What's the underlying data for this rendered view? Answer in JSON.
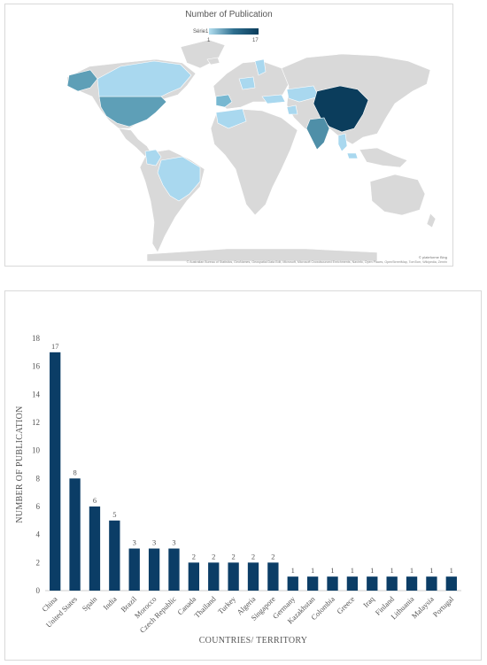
{
  "map": {
    "title": "Number of Publication",
    "legend_series": "Série1",
    "legend_min": "1",
    "legend_max": "17",
    "bing_label": "© plateforme Bing",
    "attribution": "© Australian Bureau of Statistics, GeoNames, Geospatial Data Edit, Microsoft, Microsoft Crowdsourced Enrichments, Navinfo, Open Places, OpenStreetMap, TomTom, Wikipedia, Zenrin",
    "colors": {
      "land": "#d9d9d9",
      "low": "#a9d8ef",
      "mid": "#5e9fb7",
      "high": "#0b3d5c",
      "ocean": "#ffffff"
    }
  },
  "chart_data": {
    "type": "bar",
    "title": "",
    "xlabel": "COUNTRIES/ TERRITORY",
    "ylabel": "NUMBER OF PUBLICATION",
    "ylim": [
      0,
      18
    ],
    "yticks": [
      0,
      2,
      4,
      6,
      8,
      10,
      12,
      14,
      16,
      18
    ],
    "categories": [
      "China",
      "United States",
      "Spain",
      "India",
      "Brazil",
      "Morocco",
      "Czech Republic",
      "Canada",
      "Thailand",
      "Turkey",
      "Algeria",
      "Singapore",
      "Germany",
      "Kazakhstan",
      "Colombia",
      "Greece",
      "Iraq",
      "Finland",
      "Lithuania",
      "Malaysia",
      "Portugal"
    ],
    "values": [
      17,
      8,
      6,
      5,
      3,
      3,
      3,
      2,
      2,
      2,
      2,
      2,
      1,
      1,
      1,
      1,
      1,
      1,
      1,
      1,
      1
    ],
    "bar_color": "#0b3d66",
    "grid": false,
    "data_labels": true
  }
}
